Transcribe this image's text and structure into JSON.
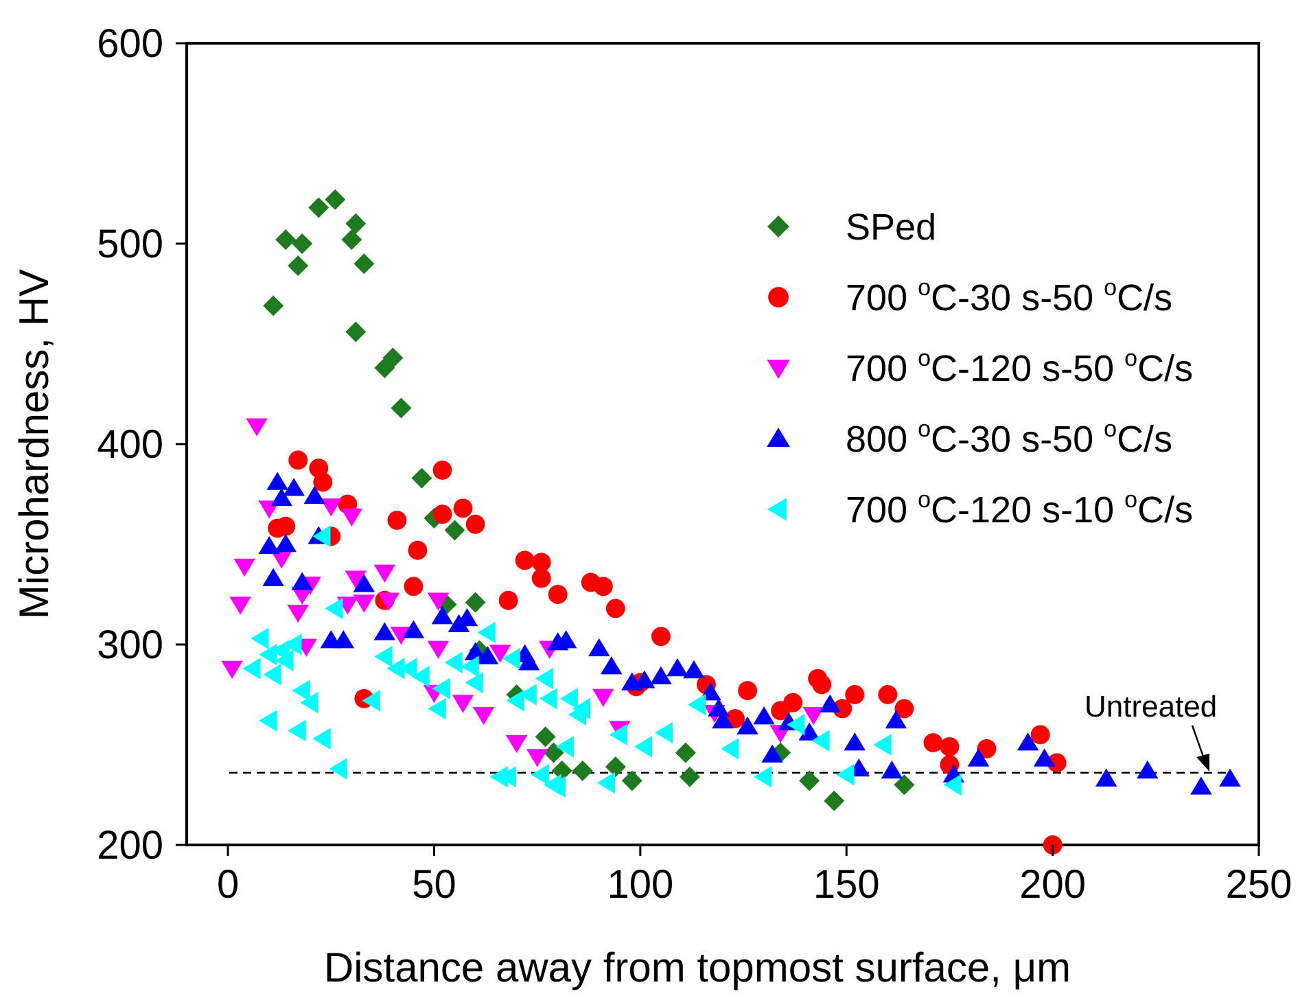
{
  "chart_data": {
    "type": "scatter",
    "title": "",
    "xlabel": "Distance away from topmost surface, μm",
    "ylabel": "Microhardness, HV",
    "xlim": [
      -10,
      250
    ],
    "ylim": [
      200,
      600
    ],
    "xticks": [
      0,
      50,
      100,
      150,
      200,
      250
    ],
    "yticks": [
      200,
      300,
      400,
      500,
      600
    ],
    "xtick_labels": [
      "0",
      "50",
      "100",
      "150",
      "200",
      "250"
    ],
    "ytick_labels": [
      "200",
      "300",
      "400",
      "500",
      "600"
    ],
    "grid": false,
    "legend_position": "top-right",
    "reference_line": {
      "y": 236,
      "style": "dashed",
      "label": "Untreated"
    },
    "series": [
      {
        "name": "SPed",
        "legend_parts": [
          {
            "t": "SPed",
            "sup": false
          }
        ],
        "marker": "diamond",
        "color": "#1e7a1e",
        "points": [
          [
            11,
            469
          ],
          [
            14,
            502
          ],
          [
            17,
            489
          ],
          [
            18,
            500
          ],
          [
            22,
            518
          ],
          [
            26,
            522
          ],
          [
            30,
            502
          ],
          [
            31,
            510
          ],
          [
            31,
            456
          ],
          [
            33,
            490
          ],
          [
            38,
            438
          ],
          [
            40,
            443
          ],
          [
            42,
            418
          ],
          [
            47,
            383
          ],
          [
            50,
            363
          ],
          [
            53,
            320
          ],
          [
            55,
            357
          ],
          [
            60,
            321
          ],
          [
            61,
            297
          ],
          [
            70,
            275
          ],
          [
            77,
            254
          ],
          [
            79,
            246
          ],
          [
            81,
            237
          ],
          [
            86,
            237
          ],
          [
            94,
            239
          ],
          [
            98,
            232
          ],
          [
            111,
            246
          ],
          [
            112,
            234
          ],
          [
            134,
            246
          ],
          [
            141,
            232
          ],
          [
            147,
            222
          ],
          [
            164,
            230
          ]
        ]
      },
      {
        "name": "700 °C-30 s-50 °C/s",
        "legend_parts": [
          {
            "t": "700 ",
            "sup": false
          },
          {
            "t": "o",
            "sup": true
          },
          {
            "t": "C-30 s-50 ",
            "sup": false
          },
          {
            "t": "o",
            "sup": true
          },
          {
            "t": "C/s",
            "sup": false
          }
        ],
        "marker": "circle",
        "color": "#ff0000",
        "points": [
          [
            12,
            358
          ],
          [
            14,
            359
          ],
          [
            17,
            392
          ],
          [
            22,
            388
          ],
          [
            23,
            381
          ],
          [
            25,
            354
          ],
          [
            29,
            370
          ],
          [
            33,
            273
          ],
          [
            38,
            322
          ],
          [
            41,
            362
          ],
          [
            45,
            329
          ],
          [
            46,
            347
          ],
          [
            52,
            387
          ],
          [
            52,
            365
          ],
          [
            57,
            368
          ],
          [
            60,
            360
          ],
          [
            68,
            322
          ],
          [
            72,
            342
          ],
          [
            76,
            341
          ],
          [
            76,
            333
          ],
          [
            80,
            325
          ],
          [
            88,
            331
          ],
          [
            91,
            329
          ],
          [
            94,
            318
          ],
          [
            99,
            279
          ],
          [
            100,
            281
          ],
          [
            105,
            304
          ],
          [
            116,
            280
          ],
          [
            123,
            263
          ],
          [
            126,
            277
          ],
          [
            134,
            267
          ],
          [
            137,
            271
          ],
          [
            143,
            283
          ],
          [
            144,
            280
          ],
          [
            149,
            268
          ],
          [
            152,
            275
          ],
          [
            160,
            275
          ],
          [
            164,
            268
          ],
          [
            171,
            251
          ],
          [
            175,
            249
          ],
          [
            175,
            240
          ],
          [
            184,
            248
          ],
          [
            197,
            255
          ],
          [
            200,
            200
          ],
          [
            201,
            241
          ]
        ]
      },
      {
        "name": "700 °C-120 s-50 °C/s",
        "legend_parts": [
          {
            "t": "700 ",
            "sup": false
          },
          {
            "t": "o",
            "sup": true
          },
          {
            "t": "C-120 s-50 ",
            "sup": false
          },
          {
            "t": "o",
            "sup": true
          },
          {
            "t": "C/s",
            "sup": false
          }
        ],
        "marker": "triangle-down",
        "color": "#ff00ff",
        "points": [
          [
            1,
            288
          ],
          [
            3,
            320
          ],
          [
            4,
            339
          ],
          [
            7,
            409
          ],
          [
            10,
            368
          ],
          [
            13,
            343
          ],
          [
            17,
            316
          ],
          [
            18,
            325
          ],
          [
            19,
            299
          ],
          [
            20,
            330
          ],
          [
            25,
            369
          ],
          [
            29,
            320
          ],
          [
            30,
            364
          ],
          [
            31,
            333
          ],
          [
            33,
            321
          ],
          [
            38,
            336
          ],
          [
            39,
            322
          ],
          [
            42,
            305
          ],
          [
            50,
            276
          ],
          [
            51,
            298
          ],
          [
            51,
            322
          ],
          [
            57,
            271
          ],
          [
            62,
            265
          ],
          [
            66,
            296
          ],
          [
            70,
            251
          ],
          [
            75,
            244
          ],
          [
            78,
            298
          ],
          [
            91,
            274
          ],
          [
            95,
            258
          ],
          [
            118,
            266
          ],
          [
            134,
            256
          ],
          [
            142,
            265
          ]
        ]
      },
      {
        "name": "800 °C-30 s-50 °C/s",
        "legend_parts": [
          {
            "t": "800 ",
            "sup": false
          },
          {
            "t": "o",
            "sup": true
          },
          {
            "t": "C-30 s-50 ",
            "sup": false
          },
          {
            "t": "o",
            "sup": true
          },
          {
            "t": "C/s",
            "sup": false
          }
        ],
        "marker": "triangle-up",
        "color": "#0000ff",
        "points": [
          [
            10,
            349
          ],
          [
            11,
            333
          ],
          [
            12,
            381
          ],
          [
            13,
            373
          ],
          [
            14,
            350
          ],
          [
            16,
            378
          ],
          [
            18,
            331
          ],
          [
            21,
            374
          ],
          [
            22,
            354
          ],
          [
            25,
            302
          ],
          [
            28,
            302
          ],
          [
            33,
            330
          ],
          [
            38,
            306
          ],
          [
            45,
            307
          ],
          [
            52,
            314
          ],
          [
            56,
            310
          ],
          [
            58,
            313
          ],
          [
            60,
            296
          ],
          [
            63,
            294
          ],
          [
            72,
            295
          ],
          [
            73,
            291
          ],
          [
            80,
            301
          ],
          [
            82,
            302
          ],
          [
            90,
            298
          ],
          [
            93,
            289
          ],
          [
            98,
            281
          ],
          [
            101,
            282
          ],
          [
            105,
            284
          ],
          [
            109,
            288
          ],
          [
            113,
            287
          ],
          [
            117,
            276
          ],
          [
            119,
            268
          ],
          [
            120,
            262
          ],
          [
            126,
            259
          ],
          [
            130,
            264
          ],
          [
            132,
            245
          ],
          [
            136,
            261
          ],
          [
            141,
            256
          ],
          [
            146,
            270
          ],
          [
            152,
            251
          ],
          [
            153,
            238
          ],
          [
            161,
            237
          ],
          [
            162,
            262
          ],
          [
            176,
            235
          ],
          [
            182,
            243
          ],
          [
            194,
            251
          ],
          [
            198,
            243
          ],
          [
            213,
            233
          ],
          [
            223,
            237
          ],
          [
            236,
            229
          ],
          [
            243,
            233
          ]
        ]
      },
      {
        "name": "700 °C-120 s-10 °C/s",
        "legend_parts": [
          {
            "t": "700 ",
            "sup": false
          },
          {
            "t": "o",
            "sup": true
          },
          {
            "t": "C-120 s-10 ",
            "sup": false
          },
          {
            "t": "o",
            "sup": true
          },
          {
            "t": "C/s",
            "sup": false
          }
        ],
        "marker": "triangle-left",
        "color": "#00ffff",
        "points": [
          [
            6,
            288
          ],
          [
            8,
            303
          ],
          [
            10,
            295
          ],
          [
            10,
            262
          ],
          [
            11,
            285
          ],
          [
            13,
            297
          ],
          [
            14,
            292
          ],
          [
            16,
            300
          ],
          [
            17,
            257
          ],
          [
            18,
            277
          ],
          [
            20,
            271
          ],
          [
            23,
            354
          ],
          [
            23,
            253
          ],
          [
            26,
            318
          ],
          [
            27,
            238
          ],
          [
            35,
            272
          ],
          [
            38,
            294
          ],
          [
            41,
            288
          ],
          [
            44,
            288
          ],
          [
            47,
            284
          ],
          [
            51,
            268
          ],
          [
            52,
            278
          ],
          [
            55,
            291
          ],
          [
            59,
            289
          ],
          [
            60,
            281
          ],
          [
            63,
            306
          ],
          [
            66,
            234
          ],
          [
            68,
            234
          ],
          [
            69,
            293
          ],
          [
            70,
            272
          ],
          [
            73,
            275
          ],
          [
            76,
            235
          ],
          [
            77,
            283
          ],
          [
            78,
            273
          ],
          [
            79,
            230
          ],
          [
            80,
            229
          ],
          [
            82,
            249
          ],
          [
            83,
            273
          ],
          [
            85,
            265
          ],
          [
            86,
            268
          ],
          [
            92,
            231
          ],
          [
            95,
            255
          ],
          [
            101,
            249
          ],
          [
            106,
            256
          ],
          [
            114,
            270
          ],
          [
            122,
            248
          ],
          [
            130,
            234
          ],
          [
            138,
            260
          ],
          [
            144,
            252
          ],
          [
            150,
            235
          ],
          [
            159,
            250
          ],
          [
            176,
            230
          ]
        ]
      }
    ]
  }
}
